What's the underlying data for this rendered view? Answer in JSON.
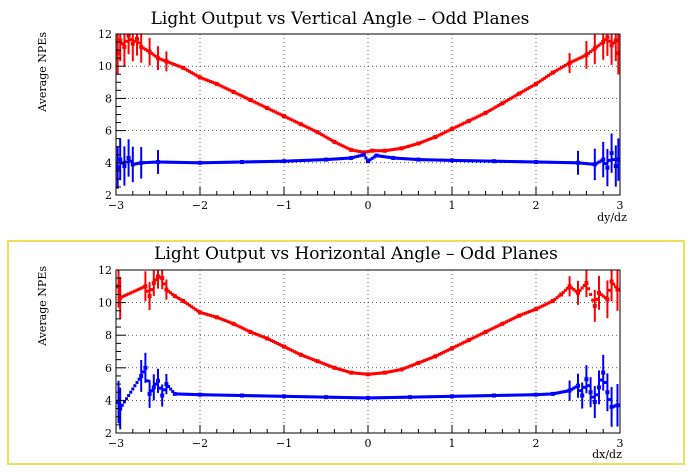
{
  "chart_data": [
    {
      "type": "scatter",
      "title": "Light Output vs Vertical Angle – Odd Planes",
      "xlabel": "dy/dz",
      "ylabel": "Average NPEs",
      "xlim": [
        -3,
        3
      ],
      "ylim": [
        2,
        12
      ],
      "x_ticks": [
        "−3",
        "−2",
        "−1",
        "0",
        "1",
        "2",
        "3"
      ],
      "y_ticks": [
        "2",
        "4",
        "6",
        "8",
        "10",
        "12"
      ],
      "grid": true,
      "series": [
        {
          "color": "#ff0000",
          "points": [
            [
              -2.98,
              10.8
            ],
            [
              -2.95,
              11.6
            ],
            [
              -2.9,
              11.2
            ],
            [
              -2.85,
              11.9
            ],
            [
              -2.8,
              11.4
            ],
            [
              -2.75,
              11.7
            ],
            [
              -2.7,
              11.2
            ],
            [
              -2.6,
              10.9
            ],
            [
              -2.5,
              10.5
            ],
            [
              -2.4,
              10.3
            ],
            [
              -2.2,
              9.9
            ],
            [
              -2.0,
              9.3
            ],
            [
              -1.8,
              8.9
            ],
            [
              -1.6,
              8.4
            ],
            [
              -1.4,
              7.9
            ],
            [
              -1.2,
              7.4
            ],
            [
              -1.0,
              6.9
            ],
            [
              -0.8,
              6.4
            ],
            [
              -0.6,
              5.9
            ],
            [
              -0.4,
              5.3
            ],
            [
              -0.2,
              4.8
            ],
            [
              -0.05,
              4.65
            ],
            [
              0.05,
              4.75
            ],
            [
              0.2,
              4.75
            ],
            [
              0.4,
              4.9
            ],
            [
              0.6,
              5.2
            ],
            [
              0.8,
              5.6
            ],
            [
              1.0,
              6.1
            ],
            [
              1.2,
              6.6
            ],
            [
              1.4,
              7.1
            ],
            [
              1.6,
              7.7
            ],
            [
              1.8,
              8.3
            ],
            [
              2.0,
              8.9
            ],
            [
              2.2,
              9.6
            ],
            [
              2.4,
              10.2
            ],
            [
              2.6,
              10.7
            ],
            [
              2.7,
              11.1
            ],
            [
              2.8,
              11.5
            ],
            [
              2.85,
              11.8
            ],
            [
              2.9,
              11.3
            ],
            [
              2.95,
              11.6
            ],
            [
              2.98,
              10.8
            ]
          ]
        },
        {
          "color": "#0000ff",
          "points": [
            [
              -2.98,
              3.7
            ],
            [
              -2.95,
              4.2
            ],
            [
              -2.9,
              3.8
            ],
            [
              -2.85,
              4.3
            ],
            [
              -2.8,
              3.9
            ],
            [
              -2.7,
              4.0
            ],
            [
              -2.5,
              4.05
            ],
            [
              -2.0,
              4.0
            ],
            [
              -1.5,
              4.05
            ],
            [
              -1.0,
              4.1
            ],
            [
              -0.5,
              4.2
            ],
            [
              -0.2,
              4.3
            ],
            [
              -0.05,
              4.5
            ],
            [
              0.0,
              4.1
            ],
            [
              0.1,
              4.45
            ],
            [
              0.3,
              4.3
            ],
            [
              0.6,
              4.2
            ],
            [
              1.0,
              4.15
            ],
            [
              1.5,
              4.1
            ],
            [
              2.0,
              4.05
            ],
            [
              2.5,
              4.0
            ],
            [
              2.7,
              3.9
            ],
            [
              2.8,
              4.2
            ],
            [
              2.85,
              3.7
            ],
            [
              2.9,
              4.6
            ],
            [
              2.95,
              3.8
            ],
            [
              2.98,
              4.2
            ]
          ]
        }
      ]
    },
    {
      "type": "scatter",
      "title": "Light Output vs Horizontal Angle – Odd Planes",
      "xlabel": "dx/dz",
      "ylabel": "Average NPEs",
      "xlim": [
        -3,
        3
      ],
      "ylim": [
        2,
        12
      ],
      "x_ticks": [
        "−3",
        "−2",
        "−1",
        "0",
        "1",
        "2",
        "3"
      ],
      "y_ticks": [
        "2",
        "4",
        "6",
        "8",
        "10",
        "12"
      ],
      "grid": true,
      "series": [
        {
          "color": "#ff0000",
          "points": [
            [
              -2.97,
              11.0
            ],
            [
              -2.95,
              10.3
            ],
            [
              -2.65,
              11.0
            ],
            [
              -2.6,
              10.4
            ],
            [
              -2.55,
              11.2
            ],
            [
              -2.5,
              11.6
            ],
            [
              -2.45,
              11.5
            ],
            [
              -2.4,
              10.8
            ],
            [
              -2.3,
              10.4
            ],
            [
              -2.2,
              10.1
            ],
            [
              -2.0,
              9.4
            ],
            [
              -1.8,
              9.1
            ],
            [
              -1.6,
              8.7
            ],
            [
              -1.4,
              8.2
            ],
            [
              -1.2,
              7.8
            ],
            [
              -1.0,
              7.3
            ],
            [
              -0.8,
              6.8
            ],
            [
              -0.6,
              6.4
            ],
            [
              -0.4,
              6.0
            ],
            [
              -0.2,
              5.7
            ],
            [
              0.0,
              5.6
            ],
            [
              0.2,
              5.7
            ],
            [
              0.4,
              5.9
            ],
            [
              0.6,
              6.3
            ],
            [
              0.8,
              6.7
            ],
            [
              1.0,
              7.2
            ],
            [
              1.2,
              7.7
            ],
            [
              1.4,
              8.2
            ],
            [
              1.6,
              8.7
            ],
            [
              1.8,
              9.2
            ],
            [
              2.0,
              9.6
            ],
            [
              2.2,
              10.1
            ],
            [
              2.3,
              10.5
            ],
            [
              2.4,
              11.0
            ],
            [
              2.5,
              10.6
            ],
            [
              2.6,
              11.2
            ],
            [
              2.7,
              9.8
            ],
            [
              2.75,
              10.6
            ],
            [
              2.85,
              10.2
            ],
            [
              2.9,
              11.3
            ],
            [
              2.97,
              10.8
            ]
          ]
        },
        {
          "color": "#0000ff",
          "points": [
            [
              -2.97,
              3.9
            ],
            [
              -2.95,
              3.5
            ],
            [
              -2.7,
              5.5
            ],
            [
              -2.65,
              6.0
            ],
            [
              -2.6,
              4.4
            ],
            [
              -2.55,
              4.8
            ],
            [
              -2.5,
              5.2
            ],
            [
              -2.45,
              4.3
            ],
            [
              -2.4,
              5.0
            ],
            [
              -2.3,
              4.4
            ],
            [
              -2.0,
              4.35
            ],
            [
              -1.5,
              4.3
            ],
            [
              -1.0,
              4.25
            ],
            [
              -0.5,
              4.2
            ],
            [
              0.0,
              4.15
            ],
            [
              0.5,
              4.2
            ],
            [
              1.0,
              4.25
            ],
            [
              1.5,
              4.3
            ],
            [
              2.0,
              4.35
            ],
            [
              2.2,
              4.4
            ],
            [
              2.4,
              4.6
            ],
            [
              2.5,
              4.9
            ],
            [
              2.55,
              4.3
            ],
            [
              2.6,
              5.3
            ],
            [
              2.65,
              4.5
            ],
            [
              2.7,
              3.9
            ],
            [
              2.75,
              4.8
            ],
            [
              2.8,
              5.7
            ],
            [
              2.85,
              4.5
            ],
            [
              2.9,
              3.6
            ],
            [
              2.97,
              3.7
            ]
          ]
        }
      ]
    }
  ]
}
